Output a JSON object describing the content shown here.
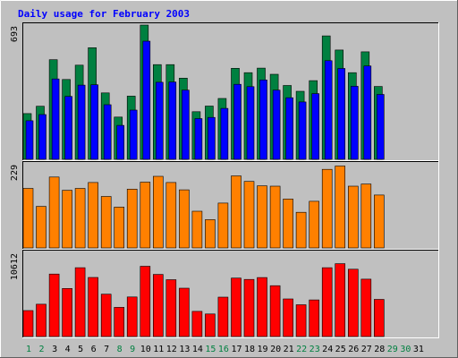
{
  "chart_data": {
    "type": "bar",
    "title": "Daily usage for February 2003",
    "x": [
      "1",
      "2",
      "3",
      "4",
      "5",
      "6",
      "7",
      "8",
      "9",
      "10",
      "11",
      "12",
      "13",
      "14",
      "15",
      "16",
      "17",
      "18",
      "19",
      "20",
      "21",
      "22",
      "23",
      "24",
      "25",
      "26",
      "27",
      "28",
      "29",
      "30",
      "31"
    ],
    "weekend_days": [
      "1",
      "2",
      "8",
      "9",
      "15",
      "16",
      "22",
      "23",
      "29",
      "30"
    ],
    "panels": [
      {
        "max_label": "693",
        "ylim": [
          0,
          693
        ],
        "series": [
          {
            "color": "#008040",
            "values": [
              236,
              274,
              514,
              412,
              486,
              576,
              343,
              218,
              326,
              693,
              489,
              489,
              419,
              246,
              275,
              314,
              470,
              447,
              471,
              439,
              381,
              351,
              406,
              637,
              564,
              447,
              555,
              376
            ]
          },
          {
            "color": "#0000ff",
            "values": [
              199,
              231,
              415,
              325,
              383,
              385,
              282,
              175,
              254,
              610,
              398,
              399,
              357,
              210,
              216,
              263,
              387,
              375,
              410,
              357,
              318,
              296,
              339,
              509,
              469,
              377,
              482,
              335
            ]
          }
        ]
      },
      {
        "max_label": "229",
        "ylim": [
          0,
          229
        ],
        "series": [
          {
            "color": "#ff8000",
            "values": [
              162,
              113,
              193,
              157,
              162,
              178,
              140,
              111,
              160,
              179,
              195,
              178,
              158,
              100,
              77,
              122,
              196,
              181,
              169,
              168,
              133,
              97,
              127,
              214,
              223,
              168,
              174,
              144
            ]
          }
        ]
      },
      {
        "max_label": "10612",
        "ylim": [
          0,
          10612
        ],
        "series": [
          {
            "color": "#ff0000",
            "values": [
              3276,
              4081,
              7884,
              6062,
              8679,
              7447,
              5343,
              3675,
              4987,
              8867,
              7832,
              7170,
              6101,
              3175,
              2848,
              4970,
              7368,
              7199,
              7443,
              6408,
              4745,
              4012,
              4616,
              8679,
              9189,
              8487,
              7231,
              4685
            ]
          }
        ]
      }
    ],
    "grid": false,
    "legend": "none"
  },
  "colors": {
    "background": "#c0c0c0",
    "title": "#0000ff",
    "weekday_label": "#000000",
    "weekend_label": "#008040"
  }
}
